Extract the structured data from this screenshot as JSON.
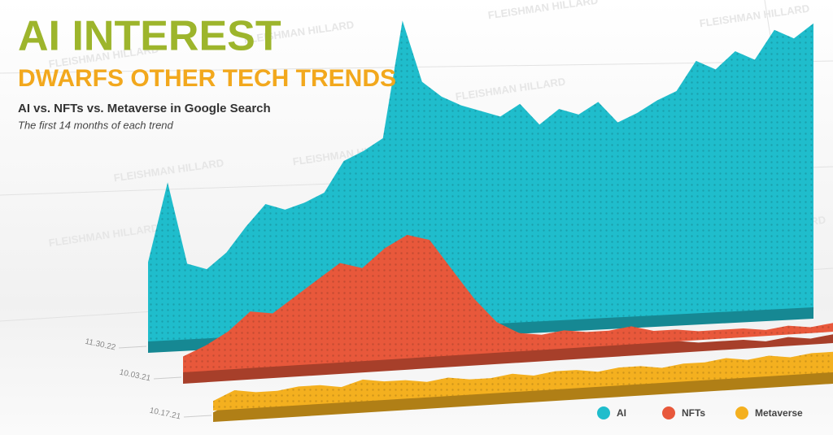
{
  "chart_data": {
    "type": "area3d",
    "title": "AI INTEREST",
    "subtitle": "DWARFS OTHER TECH TRENDS",
    "heading": "AI vs. NFTs vs. Metaverse in Google Search",
    "note": "The first 14 months of each trend",
    "watermark": "FLEISHMAN HILLARD",
    "ylim": [
      0,
      100
    ],
    "series": [
      {
        "name": "AI",
        "color": "#1fbdcc",
        "start": "11.30.22",
        "values": [
          25,
          50,
          24,
          22,
          27,
          35,
          42,
          40,
          42,
          45,
          55,
          58,
          62,
          100,
          80,
          75,
          72,
          70,
          68,
          72,
          65,
          70,
          68,
          72,
          65,
          68,
          72,
          75,
          85,
          82,
          88,
          85,
          95,
          92,
          97
        ]
      },
      {
        "name": "NFTs",
        "color": "#e8583b",
        "start": "10.03.21",
        "values": [
          5,
          8,
          12,
          18,
          17,
          22,
          27,
          32,
          30,
          36,
          40,
          38,
          28,
          18,
          10,
          6,
          5,
          6,
          5,
          5,
          6,
          4,
          4,
          3,
          3,
          3,
          2,
          3,
          2,
          3
        ]
      },
      {
        "name": "Metaverse",
        "color": "#f4b01f",
        "start": "10.17.21",
        "values": [
          3,
          6,
          5,
          5,
          6,
          6,
          5,
          7,
          6,
          6,
          5,
          6,
          5,
          5,
          6,
          5,
          6,
          6,
          5,
          6,
          6,
          5,
          6,
          6,
          7,
          6,
          7,
          6,
          7,
          7
        ]
      }
    ]
  }
}
